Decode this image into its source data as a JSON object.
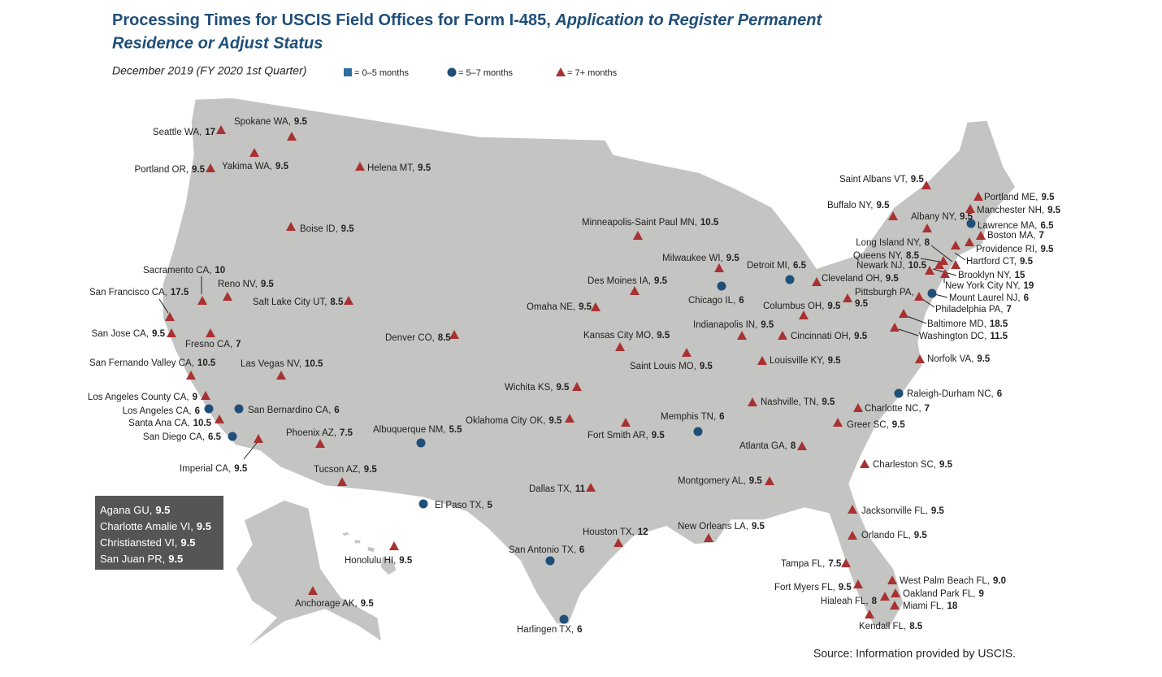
{
  "header": {
    "title": "Processing Times for USCIS Field Offices for Form I-485,",
    "title_italic": [
      "Application to Register Permanent",
      "Residence or Adjust Status"
    ],
    "subtitle": "December 2019 (FY 2020 1st Quarter)"
  },
  "legend": [
    {
      "symbol": "square",
      "color": "#2e6e9e",
      "label": "= 0–5 months"
    },
    {
      "symbol": "circle",
      "color": "#1f4e79",
      "label": "= 5–7 months"
    },
    {
      "symbol": "triangle",
      "color": "#a83232",
      "label": "= 7+ months"
    }
  ],
  "offices": [
    {
      "name": "Seattle WA,",
      "value": "17",
      "symbol": "triangle"
    },
    {
      "name": "Spokane WA,",
      "value": "9.5",
      "symbol": "triangle"
    },
    {
      "name": "Yakima WA,",
      "value": "9.5",
      "symbol": "triangle"
    },
    {
      "name": "Portland OR,",
      "value": "9.5",
      "symbol": "triangle"
    },
    {
      "name": "Helena MT,",
      "value": "9.5",
      "symbol": "triangle"
    },
    {
      "name": "Boise ID,",
      "value": "9.5",
      "symbol": "triangle"
    },
    {
      "name": "Sacramento CA,",
      "value": "10",
      "symbol": "triangle"
    },
    {
      "name": "San Francisco CA,",
      "value": "17.5",
      "symbol": "triangle"
    },
    {
      "name": "Reno NV,",
      "value": "9.5",
      "symbol": "triangle"
    },
    {
      "name": "Salt Lake City UT,",
      "value": "8.5",
      "symbol": "triangle"
    },
    {
      "name": "San Jose CA,",
      "value": "9.5",
      "symbol": "triangle"
    },
    {
      "name": "Fresno CA,",
      "value": "7",
      "symbol": "triangle"
    },
    {
      "name": "San Fernando Valley CA,",
      "value": "10.5",
      "symbol": "triangle"
    },
    {
      "name": "Las Vegas NV,",
      "value": "10.5",
      "symbol": "triangle"
    },
    {
      "name": "Los Angeles County CA,",
      "value": "9",
      "symbol": "triangle"
    },
    {
      "name": "Los Angeles CA,",
      "value": "6",
      "symbol": "circle"
    },
    {
      "name": "San Bernardino CA,",
      "value": "6",
      "symbol": "circle"
    },
    {
      "name": "Santa Ana CA,",
      "value": "10.5",
      "symbol": "triangle"
    },
    {
      "name": "San Diego CA,",
      "value": "6.5",
      "symbol": "circle"
    },
    {
      "name": "Imperial CA,",
      "value": "9.5",
      "symbol": "triangle"
    },
    {
      "name": "Phoenix AZ,",
      "value": "7.5",
      "symbol": "triangle"
    },
    {
      "name": "Tucson AZ,",
      "value": "9.5",
      "symbol": "triangle"
    },
    {
      "name": "Denver CO,",
      "value": "8.5",
      "symbol": "triangle"
    },
    {
      "name": "Albuquerque NM,",
      "value": "5.5",
      "symbol": "circle"
    },
    {
      "name": "El Paso TX,",
      "value": "5",
      "symbol": "circle"
    },
    {
      "name": "Minneapolis-Saint Paul MN,",
      "value": "10.5",
      "symbol": "triangle"
    },
    {
      "name": "Omaha NE,",
      "value": "9.5",
      "symbol": "triangle"
    },
    {
      "name": "Des Moines IA,",
      "value": "9.5",
      "symbol": "triangle"
    },
    {
      "name": "Kansas City MO,",
      "value": "9.5",
      "symbol": "triangle"
    },
    {
      "name": "Wichita KS,",
      "value": "9.5",
      "symbol": "triangle"
    },
    {
      "name": "Oklahoma City OK,",
      "value": "9.5",
      "symbol": "triangle"
    },
    {
      "name": "Fort Smith AR,",
      "value": "9.5",
      "symbol": "triangle"
    },
    {
      "name": "Dallas TX,",
      "value": "11",
      "symbol": "triangle"
    },
    {
      "name": "Houston TX,",
      "value": "12",
      "symbol": "triangle"
    },
    {
      "name": "San Antonio TX,",
      "value": "6",
      "symbol": "circle"
    },
    {
      "name": "Harlingen TX,",
      "value": "6",
      "symbol": "circle"
    },
    {
      "name": "Milwaukee WI,",
      "value": "9.5",
      "symbol": "triangle"
    },
    {
      "name": "Chicago IL,",
      "value": "6",
      "symbol": "circle"
    },
    {
      "name": "Saint Louis MO,",
      "value": "9.5",
      "symbol": "triangle"
    },
    {
      "name": "Memphis TN,",
      "value": "6",
      "symbol": "circle"
    },
    {
      "name": "Detroit MI,",
      "value": "6.5",
      "symbol": "circle"
    },
    {
      "name": "Indianapolis IN,",
      "value": "9.5",
      "symbol": "triangle"
    },
    {
      "name": "Cincinnati OH,",
      "value": "9.5",
      "symbol": "triangle"
    },
    {
      "name": "Columbus OH,",
      "value": "9.5",
      "symbol": "triangle"
    },
    {
      "name": "Cleveland OH,",
      "value": "9.5",
      "symbol": "triangle"
    },
    {
      "name": "Louisville KY,",
      "value": "9.5",
      "symbol": "triangle"
    },
    {
      "name": "Nashville, TN,",
      "value": "9.5",
      "symbol": "triangle"
    },
    {
      "name": "Atlanta GA,",
      "value": "8",
      "symbol": "triangle"
    },
    {
      "name": "Montgomery AL,",
      "value": "9.5",
      "symbol": "triangle"
    },
    {
      "name": "New Orleans LA,",
      "value": "9.5",
      "symbol": "triangle"
    },
    {
      "name": "Charlotte NC,",
      "value": "7",
      "symbol": "triangle"
    },
    {
      "name": "Greer SC,",
      "value": "9.5",
      "symbol": "triangle"
    },
    {
      "name": "Raleigh-Durham NC,",
      "value": "6",
      "symbol": "circle"
    },
    {
      "name": "Charleston SC,",
      "value": "9.5",
      "symbol": "triangle"
    },
    {
      "name": "Jacksonville FL,",
      "value": "9.5",
      "symbol": "triangle"
    },
    {
      "name": "Orlando FL,",
      "value": "9.5",
      "symbol": "triangle"
    },
    {
      "name": "Tampa FL,",
      "value": "7.5",
      "symbol": "triangle"
    },
    {
      "name": "Fort Myers FL,",
      "value": "9.5",
      "symbol": "triangle"
    },
    {
      "name": "West Palm Beach FL,",
      "value": "9.0",
      "symbol": "triangle"
    },
    {
      "name": "Oakland Park FL,",
      "value": "9",
      "symbol": "triangle"
    },
    {
      "name": "Hialeah FL,",
      "value": "8",
      "symbol": "triangle"
    },
    {
      "name": "Miami FL,",
      "value": "18",
      "symbol": "triangle"
    },
    {
      "name": "Kendall FL,",
      "value": "8.5",
      "symbol": "triangle"
    },
    {
      "name": "Norfolk VA,",
      "value": "9.5",
      "symbol": "triangle"
    },
    {
      "name": "Washington DC,",
      "value": "11.5",
      "symbol": "triangle"
    },
    {
      "name": "Baltimore MD,",
      "value": "18.5",
      "symbol": "triangle"
    },
    {
      "name": "Pittsburgh PA,",
      "value": "9.5",
      "symbol": "triangle"
    },
    {
      "name": "Philadelphia PA,",
      "value": "7",
      "symbol": "triangle"
    },
    {
      "name": "Mount Laurel NJ,",
      "value": "6",
      "symbol": "circle"
    },
    {
      "name": "New York City NY,",
      "value": "19",
      "symbol": "triangle"
    },
    {
      "name": "Brooklyn NY,",
      "value": "15",
      "symbol": "triangle"
    },
    {
      "name": "Newark NJ,",
      "value": "10.5",
      "symbol": "triangle"
    },
    {
      "name": "Queens NY,",
      "value": "8.5",
      "symbol": "triangle"
    },
    {
      "name": "Long Island NY,",
      "value": "8",
      "symbol": "triangle"
    },
    {
      "name": "Hartford CT,",
      "value": "9.5",
      "symbol": "triangle"
    },
    {
      "name": "Providence RI,",
      "value": "9.5",
      "symbol": "triangle"
    },
    {
      "name": "Boston MA,",
      "value": "7",
      "symbol": "triangle"
    },
    {
      "name": "Lawrence MA,",
      "value": "6.5",
      "symbol": "circle"
    },
    {
      "name": "Albany NY,",
      "value": "9.5",
      "symbol": "triangle"
    },
    {
      "name": "Buffalo NY,",
      "value": "9.5",
      "symbol": "triangle"
    },
    {
      "name": "Saint Albans VT,",
      "value": "9.5",
      "symbol": "triangle"
    },
    {
      "name": "Manchester NH,",
      "value": "9.5",
      "symbol": "triangle"
    },
    {
      "name": "Portland ME,",
      "value": "9.5",
      "symbol": "triangle"
    },
    {
      "name": "Honolulu HI,",
      "value": "9.5",
      "symbol": "triangle"
    },
    {
      "name": "Anchorage AK,",
      "value": "9.5",
      "symbol": "triangle"
    }
  ],
  "territories": [
    {
      "name": "Agana GU,",
      "value": "9.5"
    },
    {
      "name": "Charlotte Amalie VI,",
      "value": "9.5"
    },
    {
      "name": "Christiansted VI,",
      "value": "9.5"
    },
    {
      "name": "San Juan PR,",
      "value": "9.5"
    }
  ],
  "source": "Source:  Information provided by USCIS."
}
